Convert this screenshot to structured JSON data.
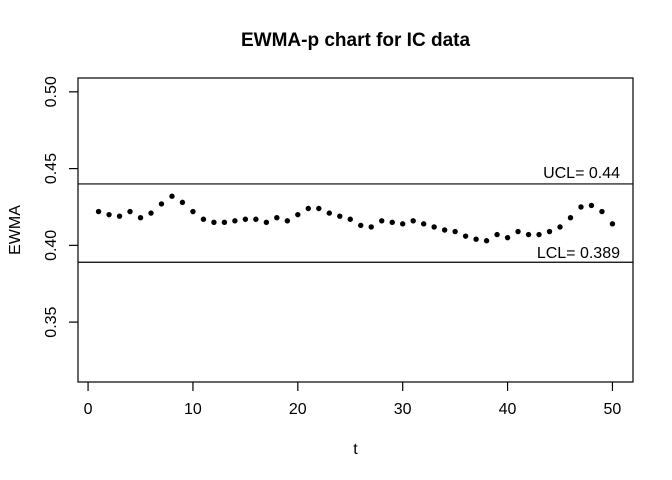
{
  "chart_data": {
    "type": "scatter",
    "title": "EWMA-p chart for IC data",
    "xlabel": "t",
    "ylabel": "EWMA",
    "grid": false,
    "legend": "none",
    "point_color": "#000000",
    "line_color": "#000000",
    "background_color": "#ffffff",
    "xlim": [
      -0.96,
      51.96
    ],
    "ylim": [
      0.311,
      0.509
    ],
    "x_ticks": [
      0,
      10,
      20,
      30,
      40,
      50
    ],
    "y_ticks": [
      "0.35",
      "0.40",
      "0.45",
      "0.50"
    ],
    "ucl": {
      "value": 0.44,
      "label": "UCL= 0.44"
    },
    "lcl": {
      "value": 0.389,
      "label": "LCL= 0.389"
    },
    "series": [
      {
        "name": "EWMA",
        "x": [
          1,
          2,
          3,
          4,
          5,
          6,
          7,
          8,
          9,
          10,
          11,
          12,
          13,
          14,
          15,
          16,
          17,
          18,
          19,
          20,
          21,
          22,
          23,
          24,
          25,
          26,
          27,
          28,
          29,
          30,
          31,
          32,
          33,
          34,
          35,
          36,
          37,
          38,
          39,
          40,
          41,
          42,
          43,
          44,
          45,
          46,
          47,
          48,
          49,
          50
        ],
        "y": [
          0.422,
          0.42,
          0.419,
          0.422,
          0.418,
          0.421,
          0.427,
          0.432,
          0.428,
          0.422,
          0.417,
          0.415,
          0.415,
          0.416,
          0.417,
          0.417,
          0.415,
          0.418,
          0.416,
          0.42,
          0.424,
          0.424,
          0.421,
          0.419,
          0.417,
          0.413,
          0.412,
          0.416,
          0.415,
          0.414,
          0.416,
          0.414,
          0.412,
          0.41,
          0.409,
          0.406,
          0.404,
          0.403,
          0.407,
          0.405,
          0.409,
          0.407,
          0.407,
          0.409,
          0.412,
          0.418,
          0.425,
          0.426,
          0.422,
          0.414
        ]
      }
    ]
  }
}
